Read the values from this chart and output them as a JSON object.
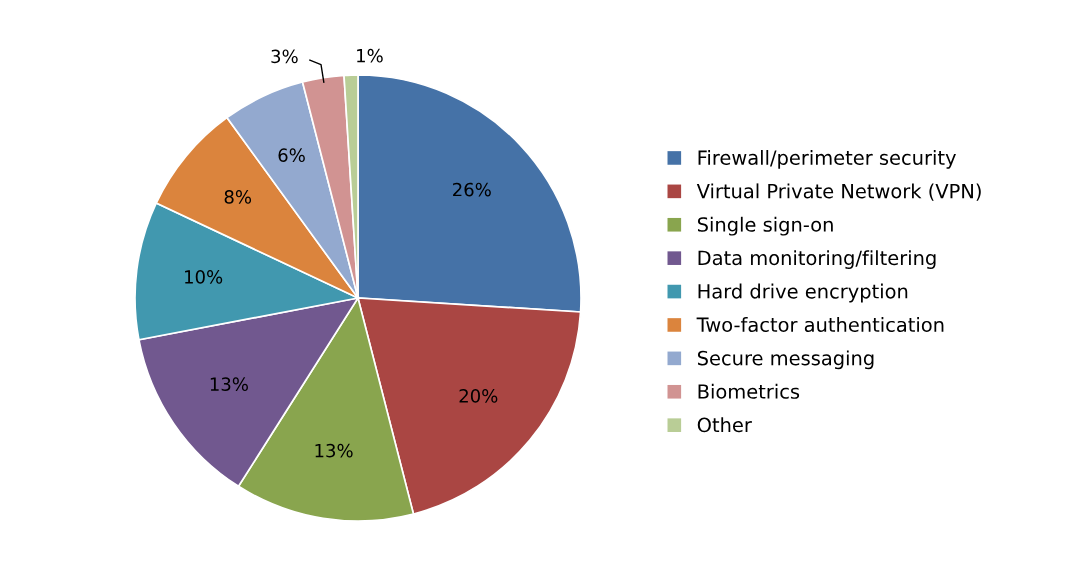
{
  "chart_data": {
    "type": "pie",
    "categories": [
      "Firewall/perimeter security",
      "Virtual Private Network (VPN)",
      "Single sign-on",
      "Data monitoring/filtering",
      "Hard drive encryption",
      "Two-factor authentication",
      "Secure messaging",
      "Biometrics",
      "Other"
    ],
    "values": [
      26,
      20,
      13,
      13,
      10,
      8,
      6,
      3,
      1
    ],
    "colors": [
      "#4572a7",
      "#aa4643",
      "#89a54e",
      "#71588f",
      "#4198af",
      "#db843d",
      "#93a9cf",
      "#d19392",
      "#b9cd96"
    ],
    "value_labels": [
      "26%",
      "20%",
      "13%",
      "13%",
      "10%",
      "8%",
      "6%",
      "3%",
      "1%"
    ],
    "legend": "right"
  }
}
